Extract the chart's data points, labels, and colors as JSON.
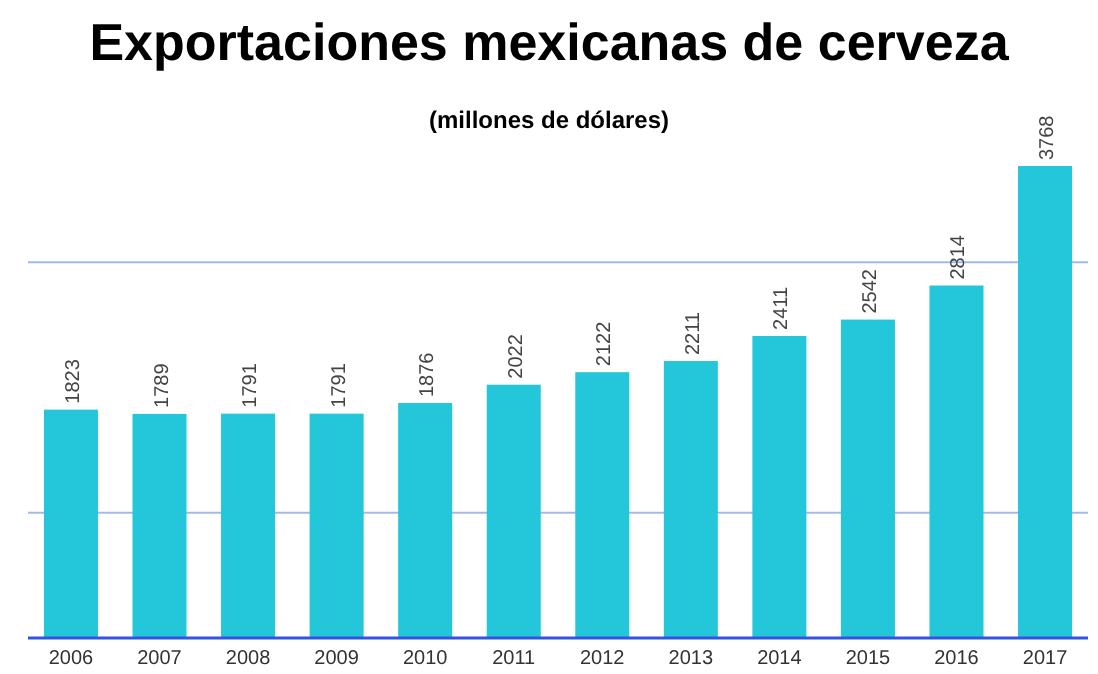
{
  "chart_data": {
    "type": "bar",
    "title": "Exportaciones mexicanas de cerveza",
    "subtitle": "(millones de dólares)",
    "categories": [
      "2006",
      "2007",
      "2008",
      "2009",
      "2010",
      "2011",
      "2012",
      "2013",
      "2014",
      "2015",
      "2016",
      "2017"
    ],
    "values": [
      1823,
      1789,
      1791,
      1791,
      1876,
      2022,
      2122,
      2211,
      2411,
      2542,
      2814,
      3768
    ],
    "color": "#24c6da",
    "ref_lines": [
      {
        "axis": "y",
        "value": 1000,
        "color": "#a4b8f0"
      },
      {
        "axis": "y",
        "value": 3000,
        "color": "#a4b8f0"
      }
    ],
    "tick_labels": "x",
    "data_labels": true
  }
}
